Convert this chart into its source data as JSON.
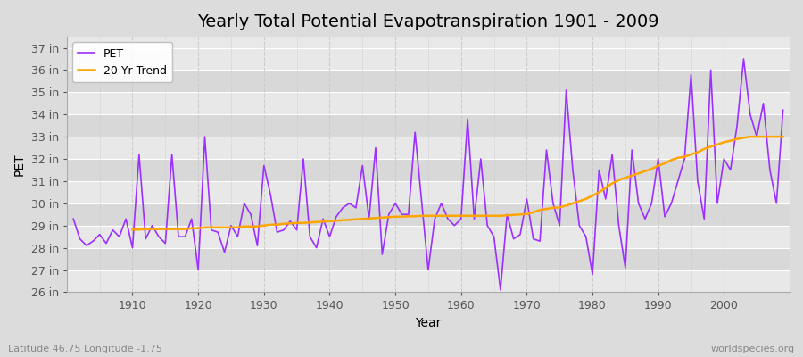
{
  "title": "Yearly Total Potential Evapotranspiration 1901 - 2009",
  "xlabel": "Year",
  "ylabel": "PET",
  "footnote_left": "Latitude 46.75 Longitude -1.75",
  "footnote_right": "worldspecies.org",
  "years": [
    1901,
    1902,
    1903,
    1904,
    1905,
    1906,
    1907,
    1908,
    1909,
    1910,
    1911,
    1912,
    1913,
    1914,
    1915,
    1916,
    1917,
    1918,
    1919,
    1920,
    1921,
    1922,
    1923,
    1924,
    1925,
    1926,
    1927,
    1928,
    1929,
    1930,
    1931,
    1932,
    1933,
    1934,
    1935,
    1936,
    1937,
    1938,
    1939,
    1940,
    1941,
    1942,
    1943,
    1944,
    1945,
    1946,
    1947,
    1948,
    1949,
    1950,
    1951,
    1952,
    1953,
    1954,
    1955,
    1956,
    1957,
    1958,
    1959,
    1960,
    1961,
    1962,
    1963,
    1964,
    1965,
    1966,
    1967,
    1968,
    1969,
    1970,
    1971,
    1972,
    1973,
    1974,
    1975,
    1976,
    1977,
    1978,
    1979,
    1980,
    1981,
    1982,
    1983,
    1984,
    1985,
    1986,
    1987,
    1988,
    1989,
    1990,
    1991,
    1992,
    1993,
    1994,
    1995,
    1996,
    1997,
    1998,
    1999,
    2000,
    2001,
    2002,
    2003,
    2004,
    2005,
    2006,
    2007,
    2008,
    2009
  ],
  "pet": [
    29.3,
    28.4,
    28.1,
    28.3,
    28.6,
    28.2,
    28.8,
    28.5,
    29.3,
    28.0,
    32.2,
    28.4,
    29.0,
    28.5,
    28.2,
    32.2,
    28.5,
    28.5,
    29.3,
    27.0,
    33.0,
    28.8,
    28.7,
    27.8,
    29.0,
    28.5,
    30.0,
    29.5,
    28.1,
    31.7,
    30.4,
    28.7,
    28.8,
    29.2,
    28.8,
    32.0,
    28.5,
    28.0,
    29.3,
    28.5,
    29.4,
    29.8,
    30.0,
    29.8,
    31.7,
    29.3,
    32.5,
    27.7,
    29.5,
    30.0,
    29.5,
    29.5,
    33.2,
    30.1,
    27.0,
    29.3,
    30.0,
    29.3,
    29.0,
    29.3,
    33.8,
    29.3,
    32.0,
    29.0,
    28.5,
    26.1,
    29.5,
    28.4,
    28.6,
    30.2,
    28.4,
    28.3,
    32.4,
    30.0,
    29.0,
    35.1,
    31.5,
    29.0,
    28.5,
    26.8,
    31.5,
    30.2,
    32.2,
    29.0,
    27.1,
    32.4,
    30.0,
    29.3,
    30.0,
    32.0,
    29.4,
    30.0,
    31.0,
    32.0,
    35.8,
    31.0,
    29.3,
    36.0,
    30.0,
    32.0,
    31.5,
    33.5,
    36.5,
    34.0,
    33.0,
    34.5,
    31.5,
    30.0,
    34.2
  ],
  "trend_years": [
    1910,
    1911,
    1912,
    1913,
    1914,
    1915,
    1916,
    1917,
    1918,
    1919,
    1920,
    1921,
    1922,
    1923,
    1924,
    1925,
    1926,
    1927,
    1928,
    1929,
    1930,
    1931,
    1932,
    1933,
    1934,
    1935,
    1936,
    1937,
    1938,
    1939,
    1940,
    1941,
    1942,
    1943,
    1944,
    1945,
    1946,
    1947,
    1948,
    1949,
    1950,
    1951,
    1952,
    1953,
    1954,
    1955,
    1956,
    1957,
    1958,
    1959,
    1960,
    1961,
    1962,
    1963,
    1964,
    1965,
    1966,
    1967,
    1968,
    1969,
    1970,
    1971,
    1972,
    1973,
    1974,
    1975,
    1976,
    1977,
    1978,
    1979,
    1980,
    1981,
    1982,
    1983,
    1984,
    1985,
    1986,
    1987,
    1988,
    1989,
    1990,
    1991,
    1992,
    1993,
    1994,
    1995,
    1996,
    1997,
    1998,
    1999,
    2000,
    2001,
    2002,
    2003,
    2004,
    2005,
    2006,
    2007,
    2008,
    2009
  ],
  "trend": [
    28.82,
    28.82,
    28.84,
    28.84,
    28.84,
    28.84,
    28.84,
    28.84,
    28.84,
    28.88,
    28.88,
    28.92,
    28.92,
    28.92,
    28.92,
    28.92,
    28.92,
    28.96,
    28.96,
    28.96,
    29.0,
    29.04,
    29.04,
    29.08,
    29.1,
    29.12,
    29.12,
    29.14,
    29.16,
    29.18,
    29.2,
    29.22,
    29.24,
    29.26,
    29.28,
    29.3,
    29.32,
    29.34,
    29.36,
    29.38,
    29.4,
    29.4,
    29.42,
    29.42,
    29.44,
    29.44,
    29.44,
    29.44,
    29.44,
    29.44,
    29.44,
    29.44,
    29.44,
    29.44,
    29.44,
    29.44,
    29.44,
    29.46,
    29.48,
    29.5,
    29.52,
    29.6,
    29.7,
    29.75,
    29.8,
    29.82,
    29.9,
    30.0,
    30.1,
    30.2,
    30.35,
    30.5,
    30.7,
    30.9,
    31.05,
    31.15,
    31.25,
    31.35,
    31.45,
    31.55,
    31.7,
    31.8,
    31.95,
    32.05,
    32.1,
    32.2,
    32.3,
    32.45,
    32.55,
    32.65,
    32.75,
    32.82,
    32.9,
    32.95,
    33.0,
    33.0,
    33.0,
    33.0,
    33.0,
    33.0
  ],
  "pet_color": "#9B30FF",
  "trend_color": "#FFA500",
  "bg_color": "#DCDCDC",
  "plot_bg_light": "#E8E8E8",
  "plot_bg_dark": "#D8D8D8",
  "grid_color_h": "#FFFFFF",
  "grid_color_v": "#CCCCCC",
  "ylim": [
    26,
    37.5
  ],
  "yticks": [
    26,
    27,
    28,
    29,
    30,
    31,
    32,
    33,
    34,
    35,
    36,
    37
  ],
  "ytick_labels": [
    "26 in",
    "27 in",
    "28 in",
    "29 in",
    "30 in",
    "31 in",
    "32 in",
    "33 in",
    "34 in",
    "35 in",
    "36 in",
    "37 in"
  ],
  "xlim": [
    1900,
    2010
  ],
  "xticks": [
    1910,
    1920,
    1930,
    1940,
    1950,
    1960,
    1970,
    1980,
    1990,
    2000
  ],
  "title_fontsize": 14,
  "label_fontsize": 10,
  "tick_fontsize": 9
}
